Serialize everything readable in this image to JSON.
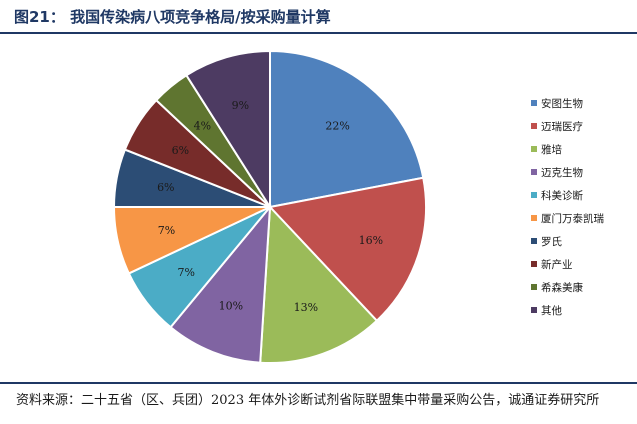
{
  "figure": {
    "title": "图21：  我国传染病八项竞争格局/按采购量计算",
    "source": "资料来源：二十五省（区、兵团）2023 年体外诊断试剂省际联盟集中带量采购公告，诚通证券研究所"
  },
  "chart_data": {
    "type": "pie",
    "title": "",
    "unit": "%",
    "start_angle_deg": 0,
    "direction": "clockwise",
    "legend_position": "right",
    "slices": [
      {
        "name": "安图生物",
        "value": 22,
        "label": "22%",
        "color": "#4f81bd"
      },
      {
        "name": "迈瑞医疗",
        "value": 16,
        "label": "16%",
        "color": "#c0504d"
      },
      {
        "name": "雅培",
        "value": 13,
        "label": "13%",
        "color": "#9bbb59"
      },
      {
        "name": "迈克生物",
        "value": 10,
        "label": "10%",
        "color": "#8064a2"
      },
      {
        "name": "科美诊断",
        "value": 7,
        "label": "7%",
        "color": "#4bacc6"
      },
      {
        "name": "厦门万泰凯瑞",
        "value": 7,
        "label": "7%",
        "color": "#f79646"
      },
      {
        "name": "罗氏",
        "value": 6,
        "label": "6%",
        "color": "#2c4d75"
      },
      {
        "name": "新产业",
        "value": 6,
        "label": "6%",
        "color": "#772c2a"
      },
      {
        "name": "希森美康",
        "value": 4,
        "label": "4%",
        "color": "#5f7530"
      },
      {
        "name": "其他",
        "value": 9,
        "label": "9%",
        "color": "#4d3b62"
      }
    ]
  }
}
